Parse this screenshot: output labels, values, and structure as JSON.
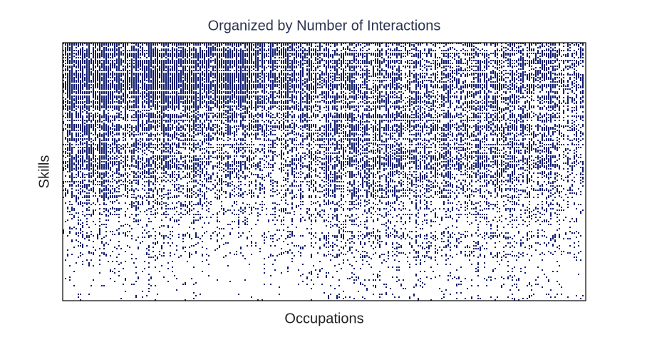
{
  "chart_data": {
    "type": "spy",
    "title": "Organized by Number of Interactions",
    "xlabel": "Occupations",
    "ylabel": "Skills",
    "color": "#0d1a6b",
    "density": [
      [
        0.92,
        0.92,
        0.9,
        0.9,
        0.88,
        0.85,
        0.8,
        0.7,
        0.6,
        0.55,
        0.55,
        0.55,
        0.55,
        0.5,
        0.5,
        0.45
      ],
      [
        0.9,
        0.88,
        0.88,
        0.85,
        0.82,
        0.78,
        0.7,
        0.6,
        0.55,
        0.5,
        0.5,
        0.5,
        0.5,
        0.45,
        0.45,
        0.4
      ],
      [
        0.75,
        0.72,
        0.7,
        0.7,
        0.65,
        0.6,
        0.55,
        0.5,
        0.5,
        0.5,
        0.5,
        0.5,
        0.48,
        0.45,
        0.4,
        0.35
      ],
      [
        0.65,
        0.62,
        0.6,
        0.55,
        0.5,
        0.45,
        0.45,
        0.45,
        0.5,
        0.55,
        0.55,
        0.55,
        0.5,
        0.5,
        0.45,
        0.35
      ],
      [
        0.6,
        0.55,
        0.5,
        0.45,
        0.4,
        0.38,
        0.38,
        0.4,
        0.45,
        0.5,
        0.5,
        0.5,
        0.5,
        0.45,
        0.4,
        0.3
      ],
      [
        0.5,
        0.45,
        0.4,
        0.38,
        0.35,
        0.3,
        0.3,
        0.35,
        0.4,
        0.45,
        0.45,
        0.45,
        0.45,
        0.4,
        0.35,
        0.25
      ],
      [
        0.4,
        0.38,
        0.35,
        0.3,
        0.3,
        0.25,
        0.25,
        0.3,
        0.35,
        0.4,
        0.4,
        0.4,
        0.38,
        0.35,
        0.3,
        0.2
      ],
      [
        0.35,
        0.3,
        0.3,
        0.28,
        0.25,
        0.22,
        0.22,
        0.25,
        0.3,
        0.3,
        0.3,
        0.3,
        0.28,
        0.25,
        0.22,
        0.15
      ],
      [
        0.25,
        0.22,
        0.2,
        0.18,
        0.15,
        0.15,
        0.15,
        0.2,
        0.3,
        0.3,
        0.3,
        0.28,
        0.25,
        0.22,
        0.2,
        0.15
      ],
      [
        0.15,
        0.12,
        0.12,
        0.1,
        0.1,
        0.08,
        0.1,
        0.12,
        0.18,
        0.2,
        0.2,
        0.2,
        0.18,
        0.15,
        0.12,
        0.1
      ],
      [
        0.1,
        0.08,
        0.08,
        0.06,
        0.05,
        0.05,
        0.06,
        0.08,
        0.1,
        0.12,
        0.12,
        0.12,
        0.1,
        0.1,
        0.08,
        0.06
      ],
      [
        0.04,
        0.03,
        0.03,
        0.02,
        0.02,
        0.02,
        0.02,
        0.04,
        0.06,
        0.08,
        0.08,
        0.08,
        0.06,
        0.06,
        0.05,
        0.04
      ]
    ]
  }
}
